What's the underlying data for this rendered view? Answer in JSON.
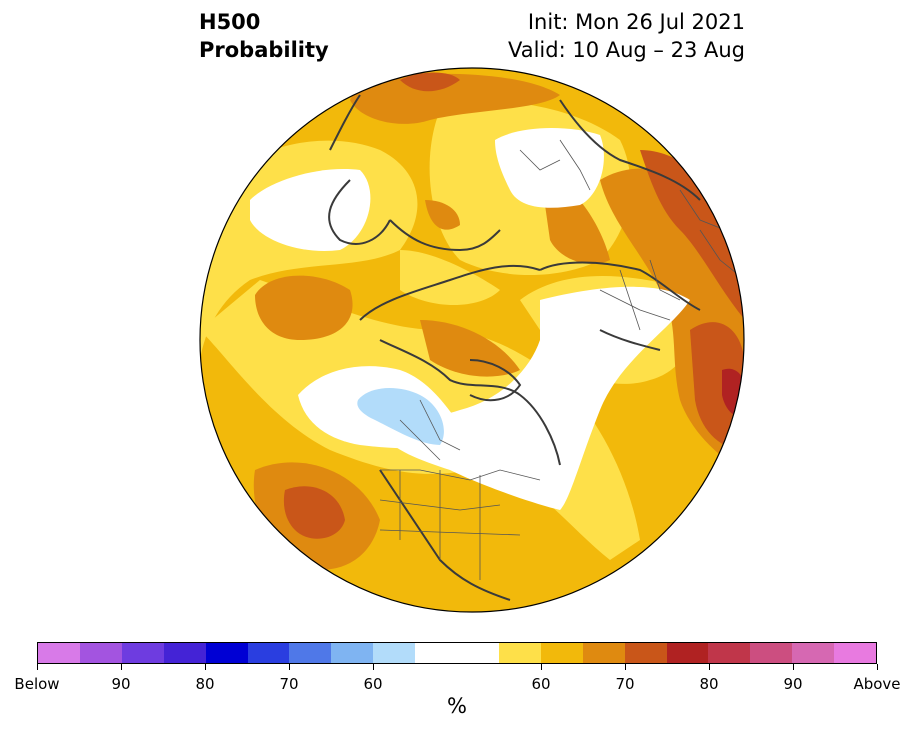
{
  "header": {
    "title_line1": "H500",
    "title_line2": "Probability",
    "init": "Init: Mon 26 Jul 2021",
    "valid": "Valid: 10 Aug – 23 Aug"
  },
  "colorbar": {
    "colors": [
      "#d87ae8",
      "#a354e0",
      "#6e3ce0",
      "#4423d6",
      "#0000d4",
      "#2a3ee0",
      "#4f78e8",
      "#7fb4f2",
      "#b2dcfa",
      "#ffffff",
      "#fee049",
      "#f2b90b",
      "#df8a10",
      "#c95619",
      "#b02222",
      "#c0364a",
      "#cc4e80",
      "#d668b2",
      "#e87ae0"
    ],
    "labels": [
      "Below",
      "90",
      "80",
      "70",
      "60",
      "60",
      "70",
      "80",
      "90",
      "Above"
    ],
    "unit": "%"
  },
  "map": {
    "projection": "north-polar-stereographic",
    "variable": "500 hPa height tercile probability"
  }
}
